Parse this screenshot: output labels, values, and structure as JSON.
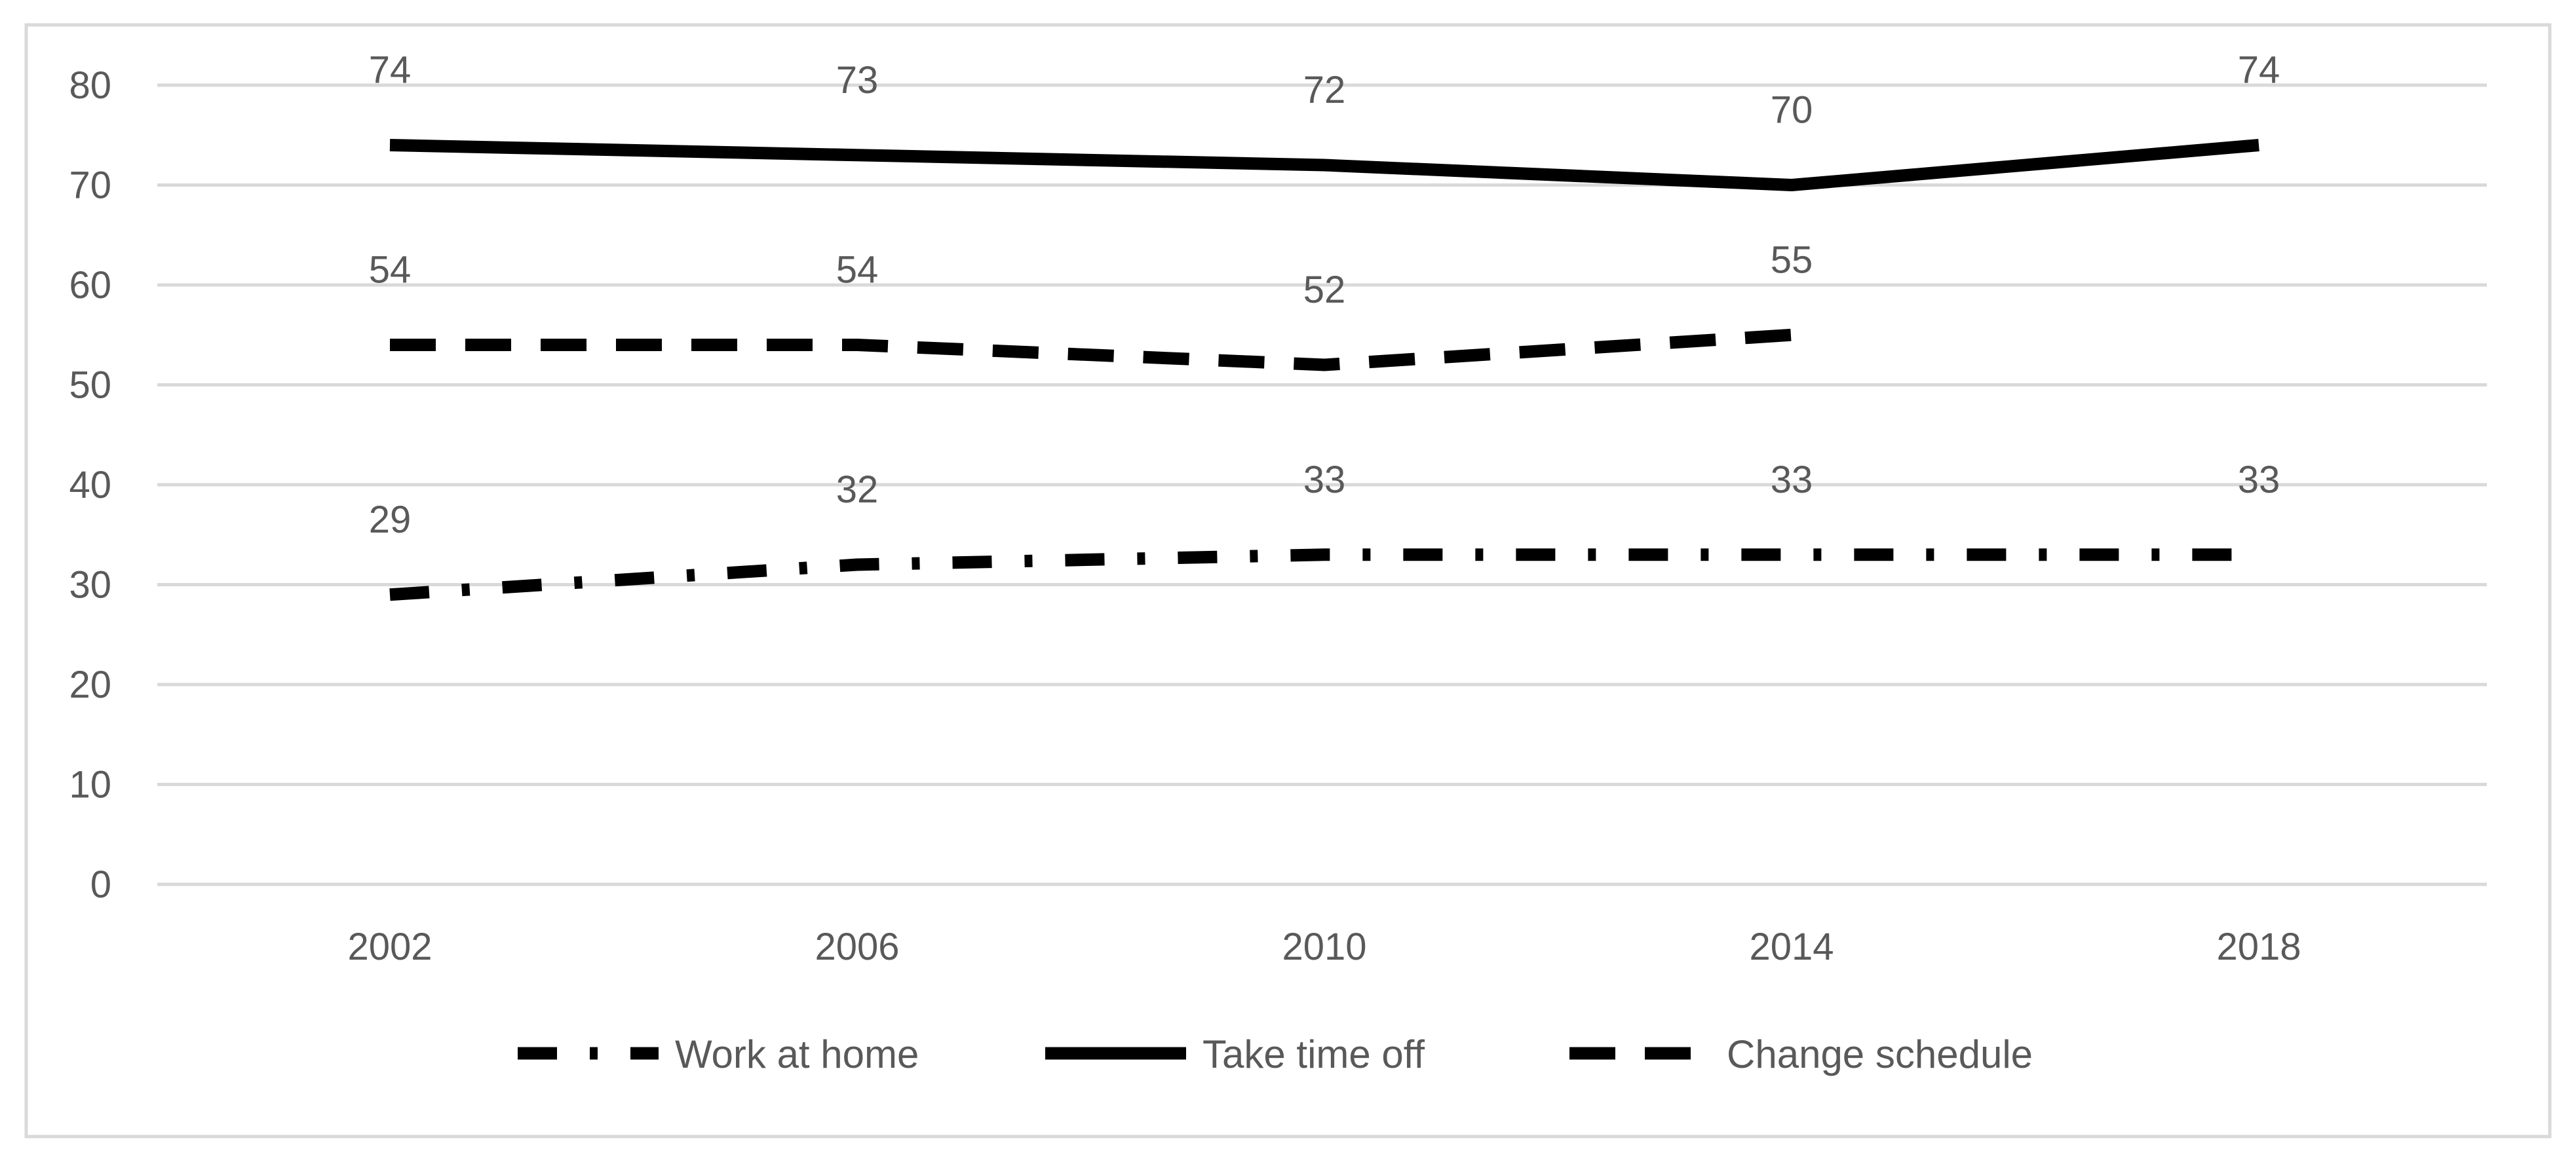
{
  "chart_data": {
    "type": "line",
    "title": "",
    "xlabel": "",
    "ylabel": "",
    "categories": [
      "2002",
      "2006",
      "2010",
      "2014",
      "2018"
    ],
    "ylim": [
      0,
      80
    ],
    "yticks": [
      0,
      10,
      20,
      30,
      40,
      50,
      60,
      70,
      80
    ],
    "grid": true,
    "legend_position": "bottom",
    "series": [
      {
        "name": "Work at home",
        "style": "dash-dot",
        "color": "#000000",
        "values": [
          29,
          32,
          33,
          33,
          33
        ]
      },
      {
        "name": "Take time off",
        "style": "solid",
        "color": "#000000",
        "values": [
          74,
          73,
          72,
          70,
          74
        ]
      },
      {
        "name": "Change schedule",
        "style": "dashed",
        "color": "#000000",
        "values": [
          54,
          54,
          52,
          55,
          null
        ]
      }
    ]
  }
}
